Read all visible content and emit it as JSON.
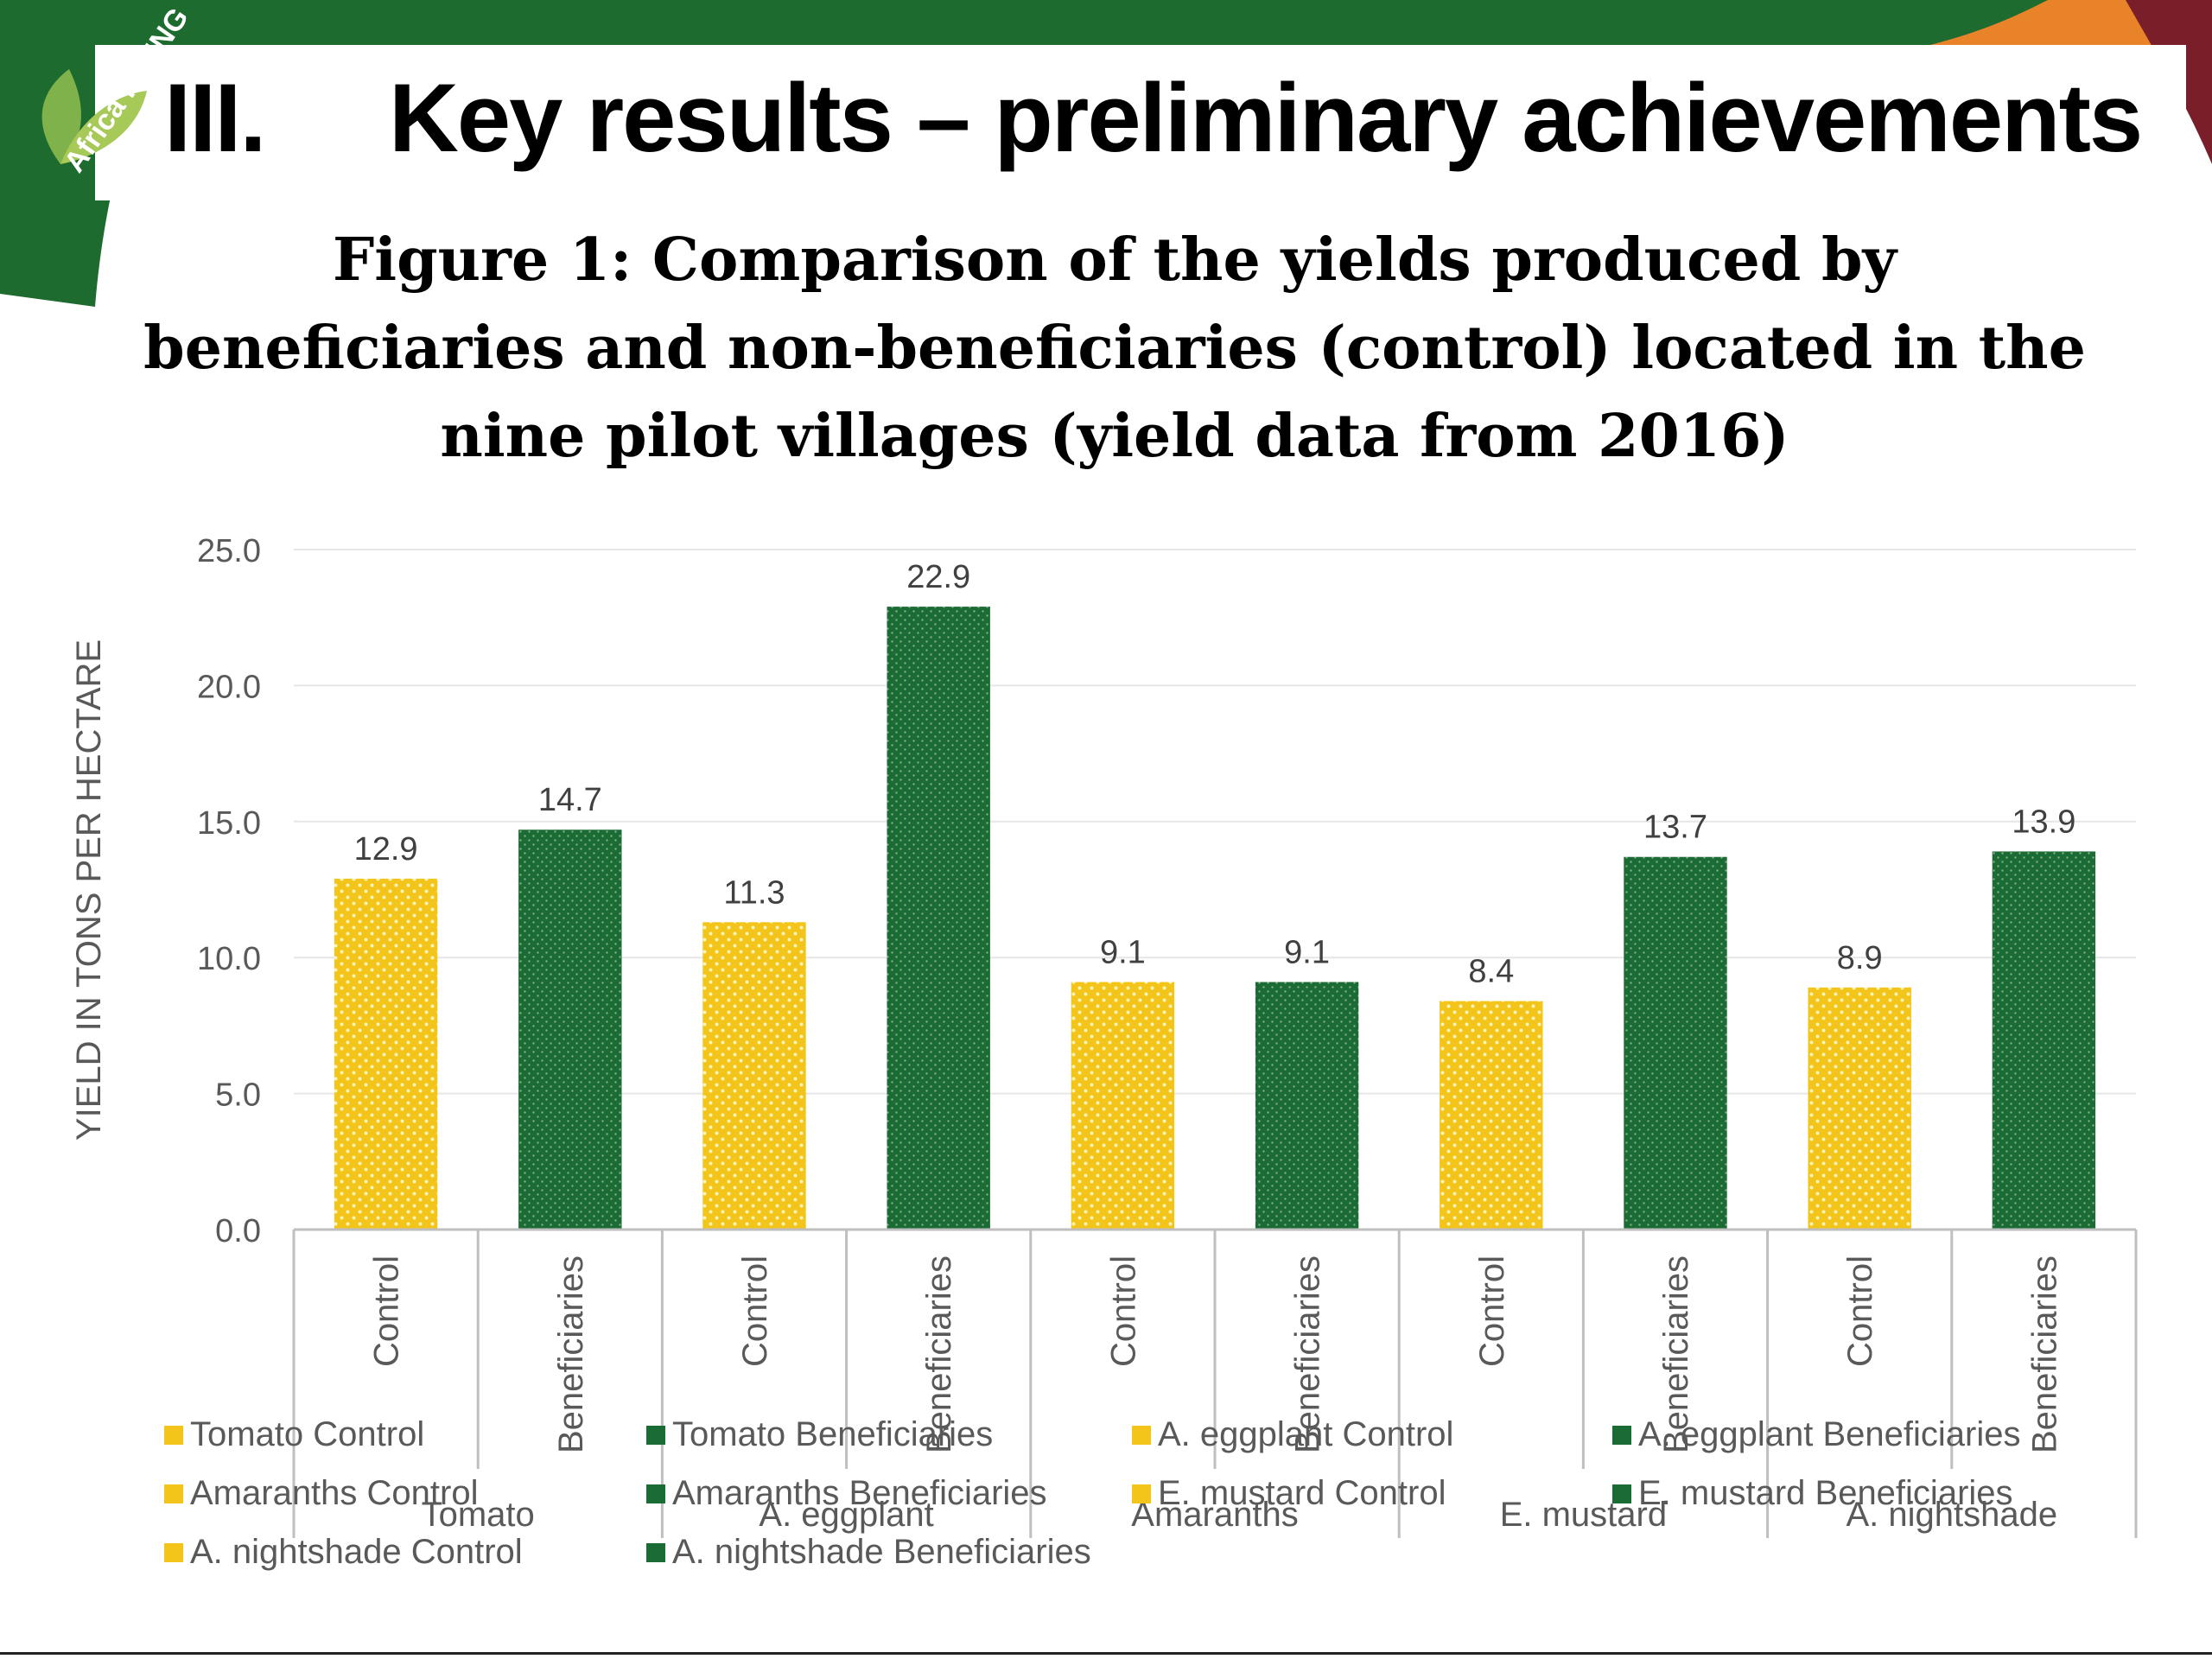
{
  "slide": {
    "title_number": "III.",
    "title_text": "Key results – preliminary achievements",
    "logo_text": "Africa RISING"
  },
  "colors": {
    "control": "#f3c51a",
    "beneficiaries": "#1a6b34",
    "banner_green": "#1e6b2f",
    "banner_orange": "#e9832a"
  },
  "chart_data": {
    "type": "bar",
    "title": "Figure 1: Comparison of the yields produced by beneficiaries and non-beneficiaries (control) located in the nine pilot villages (yield data from 2016)",
    "ylabel": "YIELD IN TONS PER HECTARE",
    "xlabel": "",
    "ylim": [
      0,
      25
    ],
    "yticks": [
      "0.0",
      "5.0",
      "10.0",
      "15.0",
      "20.0",
      "25.0"
    ],
    "grid": true,
    "legend_position": "bottom",
    "groups": [
      {
        "name": "Tomato",
        "bars": [
          {
            "category": "Control",
            "series": "Tomato Control",
            "value": 12.9,
            "label": "12.9",
            "kind": "control"
          },
          {
            "category": "Beneficiaries",
            "series": "Tomato Beneficiaries",
            "value": 14.7,
            "label": "14.7",
            "kind": "beneficiaries"
          }
        ]
      },
      {
        "name": "A. eggplant",
        "bars": [
          {
            "category": "Control",
            "series": "A. eggplant Control",
            "value": 11.3,
            "label": "11.3",
            "kind": "control"
          },
          {
            "category": "Beneficiaries",
            "series": "A. eggplant Beneficiaries",
            "value": 22.9,
            "label": "22.9",
            "kind": "beneficiaries"
          }
        ]
      },
      {
        "name": "Amaranths",
        "bars": [
          {
            "category": "Control",
            "series": "Amaranths Control",
            "value": 9.1,
            "label": "9.1",
            "kind": "control"
          },
          {
            "category": "Beneficiaries",
            "series": "Amaranths Beneficiaries",
            "value": 9.1,
            "label": "9.1",
            "kind": "beneficiaries"
          }
        ]
      },
      {
        "name": "E. mustard",
        "bars": [
          {
            "category": "Control",
            "series": "E. mustard Control",
            "value": 8.4,
            "label": "8.4",
            "kind": "control"
          },
          {
            "category": "Beneficiaries",
            "series": "E. mustard Beneficiaries",
            "value": 13.7,
            "label": "13.7",
            "kind": "beneficiaries"
          }
        ]
      },
      {
        "name": "A. nightshade",
        "bars": [
          {
            "category": "Control",
            "series": "A. nightshade Control",
            "value": 8.9,
            "label": "8.9",
            "kind": "control"
          },
          {
            "category": "Beneficiaries",
            "series": "A. nightshade Beneficiaries",
            "value": 13.9,
            "label": "13.9",
            "kind": "beneficiaries"
          }
        ]
      }
    ],
    "legend": [
      {
        "label": "Tomato Control",
        "kind": "control"
      },
      {
        "label": "Tomato Beneficiaries",
        "kind": "beneficiaries"
      },
      {
        "label": "A. eggplant Control",
        "kind": "control"
      },
      {
        "label": "A. eggplant Beneficiaries",
        "kind": "beneficiaries"
      },
      {
        "label": "Amaranths Control",
        "kind": "control"
      },
      {
        "label": "Amaranths Beneficiaries",
        "kind": "beneficiaries"
      },
      {
        "label": "E. mustard Control",
        "kind": "control"
      },
      {
        "label": "E. mustard Beneficiaries",
        "kind": "beneficiaries"
      },
      {
        "label": "A. nightshade Control",
        "kind": "control"
      },
      {
        "label": "A. nightshade Beneficiaries",
        "kind": "beneficiaries"
      }
    ]
  }
}
